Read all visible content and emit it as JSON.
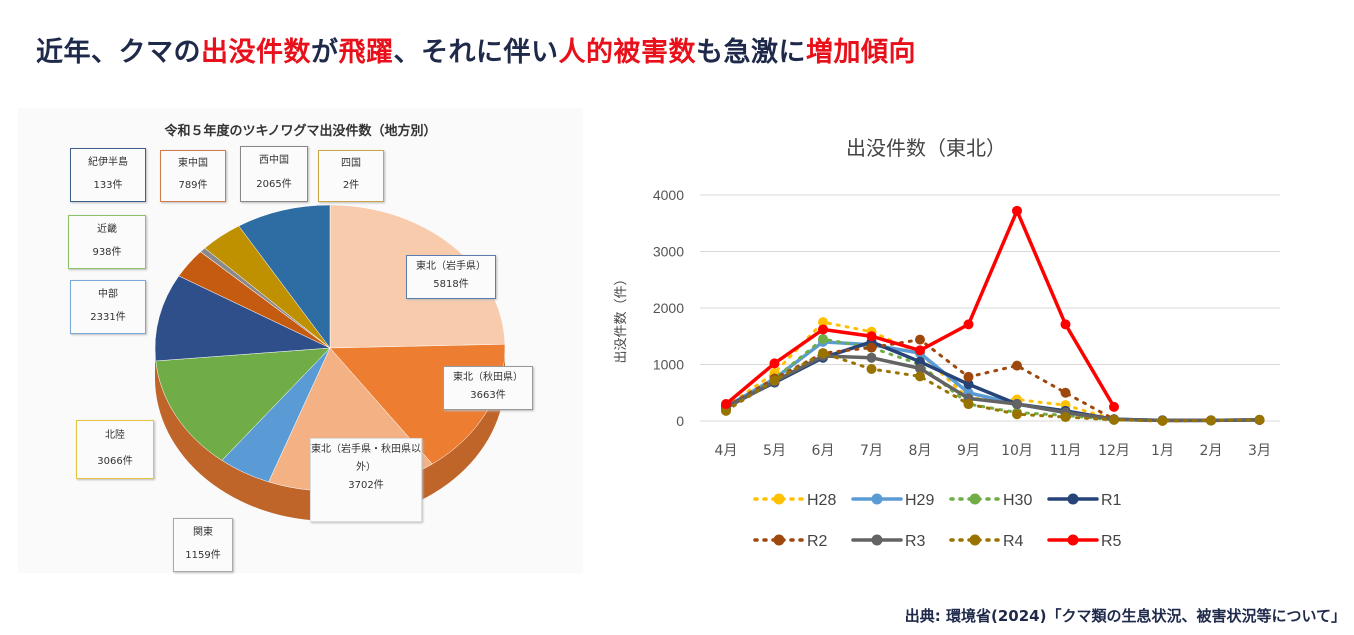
{
  "title": {
    "p1": "近年、クマの",
    "r1": "出没件数",
    "p2": "が",
    "r2": "飛躍",
    "p3": "、それに伴い",
    "r3": "人的被害数",
    "p4": "も急激に",
    "r4": "増加傾向"
  },
  "source": "出典: 環境省(2024)「クマ類の生息状況、被害状況等について」",
  "chart_data": [
    {
      "type": "pie",
      "title": "令和５年度のツキノワグマ出没件数（地方別）",
      "slices": [
        {
          "name": "東北（岩手県）",
          "label": "5818件",
          "value": 5818,
          "color": "#f8cbad"
        },
        {
          "name": "東北（秋田県）",
          "label": "3663件",
          "value": 3663,
          "color": "#ed7d31"
        },
        {
          "name": "東北（岩手県・秋田県以外）",
          "label": "3702件",
          "value": 3702,
          "color": "#f4b183"
        },
        {
          "name": "関東",
          "label": "1159件",
          "value": 1159,
          "color": "#5b9bd5"
        },
        {
          "name": "北陸",
          "label": "3066件",
          "value": 3066,
          "color": "#70ad47"
        },
        {
          "name": "中部",
          "label": "2331件",
          "value": 2331,
          "color": "#2f4f8a"
        },
        {
          "name": "東中国",
          "label": "789件",
          "value": 789,
          "color": "#c55a11"
        },
        {
          "name": "四国",
          "label": "2件",
          "value": 2,
          "color": "#7f7f7f"
        },
        {
          "name": "紀伊半島",
          "label": "133件",
          "value": 133,
          "color": "#8a8a8a"
        },
        {
          "name": "近畿",
          "label": "938件",
          "value": 938,
          "color": "#bf9000"
        },
        {
          "name": "西中国",
          "label": "2065件",
          "value": 2065,
          "color": "#2e6da4"
        }
      ]
    },
    {
      "type": "line",
      "title": "出没件数（東北）",
      "ylabel": "出没件数（件）",
      "ylim": [
        0,
        4000
      ],
      "yticks": [
        "0",
        "1000",
        "2000",
        "3000",
        "4000"
      ],
      "categories": [
        "4月",
        "5月",
        "6月",
        "7月",
        "8月",
        "9月",
        "10月",
        "11月",
        "12月",
        "1月",
        "2月",
        "3月"
      ],
      "series": [
        {
          "name": "H28",
          "color": "#ffc000",
          "dash": true,
          "values": [
            250,
            850,
            1750,
            1580,
            1200,
            400,
            380,
            280,
            30,
            10,
            10,
            20
          ]
        },
        {
          "name": "H29",
          "color": "#5b9bd5",
          "dash": false,
          "values": [
            250,
            750,
            1400,
            1350,
            1200,
            500,
            300,
            150,
            30,
            10,
            10,
            20
          ]
        },
        {
          "name": "H30",
          "color": "#70ad47",
          "dash": true,
          "values": [
            200,
            750,
            1450,
            1300,
            1000,
            300,
            150,
            100,
            20,
            10,
            10,
            20
          ]
        },
        {
          "name": "R1",
          "color": "#264478",
          "dash": false,
          "values": [
            250,
            680,
            1120,
            1400,
            1050,
            650,
            300,
            180,
            30,
            10,
            10,
            20
          ]
        },
        {
          "name": "R2",
          "color": "#9e480e",
          "dash": true,
          "values": [
            250,
            750,
            1200,
            1300,
            1440,
            780,
            980,
            500,
            30,
            10,
            10,
            20
          ]
        },
        {
          "name": "R3",
          "color": "#636363",
          "dash": false,
          "values": [
            230,
            700,
            1150,
            1120,
            930,
            400,
            300,
            150,
            30,
            10,
            10,
            20
          ]
        },
        {
          "name": "R4",
          "color": "#997300",
          "dash": true,
          "values": [
            180,
            720,
            1200,
            920,
            790,
            300,
            120,
            70,
            20,
            0,
            10,
            20
          ]
        },
        {
          "name": "R5",
          "color": "#ff0000",
          "dash": false,
          "values": [
            300,
            1020,
            1620,
            1500,
            1250,
            1710,
            3720,
            1710,
            250,
            null,
            null,
            null
          ]
        }
      ]
    }
  ]
}
